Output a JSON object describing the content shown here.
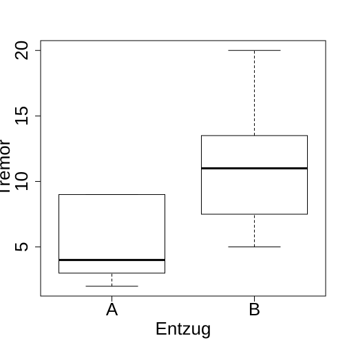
{
  "chart_data": {
    "type": "boxplot",
    "xlabel": "Entzug",
    "ylabel": "Tremor",
    "categories": [
      "A",
      "B"
    ],
    "boxes": [
      {
        "category": "A",
        "min": 2,
        "q1": 3,
        "median": 4,
        "q3": 9,
        "max": 9
      },
      {
        "category": "B",
        "min": 5,
        "q1": 7.5,
        "median": 11,
        "q3": 13.5,
        "max": 20
      }
    ],
    "y_ticks": [
      5,
      10,
      15,
      20
    ],
    "ylim": [
      1.25,
      20.75
    ]
  }
}
